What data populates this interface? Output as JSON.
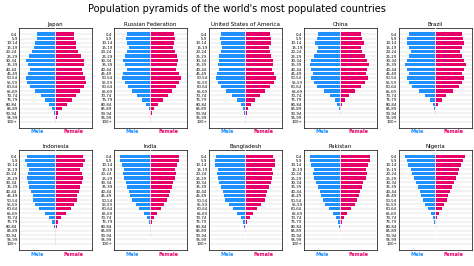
{
  "title": "Population pyramids of the world's most populated countries",
  "chart_data": [
    {
      "type": "bar",
      "orientation": "horizontal",
      "title": "Japan",
      "categories": [
        "100+",
        "95-99",
        "90-94",
        "85-89",
        "80-84",
        "75-79",
        "70-74",
        "65-69",
        "60-64",
        "55-59",
        "50-54",
        "45-49",
        "40-44",
        "35-39",
        "30-34",
        "25-29",
        "20-24",
        "15-19",
        "10-14",
        "5-9",
        "0-4"
      ],
      "series": [
        {
          "name": "Male",
          "color": "#1E90FF",
          "values": [
            0.02,
            0.05,
            0.15,
            0.45,
            0.9,
            1.4,
            2.0,
            2.8,
            3.5,
            3.9,
            4.0,
            3.8,
            3.5,
            3.8,
            4.0,
            3.6,
            3.2,
            3.0,
            2.8,
            2.6,
            2.5
          ]
        },
        {
          "name": "Female",
          "color": "#E8006A",
          "values": [
            0.05,
            0.15,
            0.4,
            0.9,
            1.6,
            2.3,
            2.9,
            3.4,
            4.0,
            4.2,
            4.1,
            3.8,
            3.6,
            3.9,
            3.9,
            3.5,
            3.1,
            2.9,
            2.8,
            2.6,
            2.5
          ]
        }
      ],
      "xlim": [
        -5.04,
        5.04
      ],
      "tick_labels": "y",
      "grid": true
    },
    {
      "type": "bar",
      "orientation": "horizontal",
      "title": "Russian Federation",
      "categories": [
        "100+",
        "95-99",
        "90-94",
        "85-89",
        "80-84",
        "75-79",
        "70-74",
        "65-69",
        "60-64",
        "55-59",
        "50-54",
        "45-49",
        "40-44",
        "35-39",
        "30-34",
        "25-29",
        "20-24",
        "15-19",
        "10-14",
        "5-9",
        "0-4"
      ],
      "series": [
        {
          "name": "Male",
          "color": "#1E90FF",
          "values": [
            0.01,
            0.03,
            0.08,
            0.2,
            0.6,
            1.2,
            2.0,
            2.7,
            3.3,
            3.8,
            4.2,
            4.0,
            3.5,
            3.7,
            4.0,
            3.8,
            3.5,
            3.2,
            3.5,
            3.6,
            3.5
          ]
        },
        {
          "name": "Female",
          "color": "#E8006A",
          "values": [
            0.04,
            0.12,
            0.3,
            0.6,
            1.2,
            1.9,
            2.6,
            3.2,
            3.8,
            4.2,
            4.5,
            4.3,
            3.8,
            3.9,
            4.1,
            3.9,
            3.6,
            3.3,
            3.5,
            3.6,
            3.5
          ]
        }
      ],
      "xlim": [
        -5.4,
        5.4
      ],
      "tick_labels": "y",
      "grid": true
    },
    {
      "type": "bar",
      "orientation": "horizontal",
      "title": "United States of America",
      "categories": [
        "100+",
        "95-99",
        "90-94",
        "85-89",
        "80-84",
        "75-79",
        "70-74",
        "65-69",
        "60-64",
        "55-59",
        "50-54",
        "45-49",
        "40-44",
        "35-39",
        "30-34",
        "25-29",
        "20-24",
        "15-19",
        "10-14",
        "5-9",
        "0-4"
      ],
      "series": [
        {
          "name": "Male",
          "color": "#1E90FF",
          "values": [
            0.03,
            0.07,
            0.15,
            0.35,
            0.7,
            1.3,
            2.1,
            3.0,
            3.8,
            4.3,
            4.6,
            4.4,
            4.1,
            4.3,
            4.2,
            4.1,
            3.9,
            3.7,
            3.9,
            4.0,
            3.9
          ]
        },
        {
          "name": "Female",
          "color": "#E8006A",
          "values": [
            0.06,
            0.12,
            0.25,
            0.45,
            0.9,
            1.5,
            2.3,
            3.1,
            3.9,
            4.5,
            4.8,
            4.5,
            4.2,
            4.4,
            4.3,
            4.1,
            3.9,
            3.8,
            4.0,
            4.0,
            3.9
          ]
        }
      ],
      "xlim": [
        -5.76,
        5.76
      ],
      "tick_labels": "y",
      "grid": true
    },
    {
      "type": "bar",
      "orientation": "horizontal",
      "title": "China",
      "categories": [
        "100+",
        "95-99",
        "90-94",
        "85-89",
        "80-84",
        "75-79",
        "70-74",
        "65-69",
        "60-64",
        "55-59",
        "50-54",
        "45-49",
        "40-44",
        "35-39",
        "30-34",
        "25-29",
        "20-24",
        "15-19",
        "10-14",
        "5-9",
        "0-4"
      ],
      "series": [
        {
          "name": "Male",
          "color": "#1E90FF",
          "values": [
            0.01,
            0.03,
            0.07,
            0.18,
            0.5,
            1.0,
            1.8,
            3.0,
            4.2,
            4.8,
            5.3,
            5.0,
            5.3,
            5.6,
            5.3,
            4.8,
            4.3,
            4.0,
            4.6,
            4.3,
            4.1
          ]
        },
        {
          "name": "Female",
          "color": "#E8006A",
          "values": [
            0.01,
            0.03,
            0.06,
            0.15,
            0.42,
            0.88,
            1.6,
            2.7,
            3.9,
            4.6,
            5.1,
            4.8,
            5.0,
            5.3,
            5.0,
            4.6,
            4.1,
            3.8,
            4.3,
            4.0,
            3.8
          ]
        }
      ],
      "xlim": [
        -6.72,
        6.72
      ],
      "tick_labels": "y",
      "grid": true
    },
    {
      "type": "bar",
      "orientation": "horizontal",
      "title": "Brazil",
      "categories": [
        "100+",
        "95-99",
        "90-94",
        "85-89",
        "80-84",
        "75-79",
        "70-74",
        "65-69",
        "60-64",
        "55-59",
        "50-54",
        "45-49",
        "40-44",
        "35-39",
        "30-34",
        "25-29",
        "20-24",
        "15-19",
        "10-14",
        "5-9",
        "0-4"
      ],
      "series": [
        {
          "name": "Male",
          "color": "#1E90FF",
          "values": [
            0.01,
            0.03,
            0.07,
            0.16,
            0.4,
            0.85,
            1.6,
            2.5,
            3.5,
            4.0,
            4.3,
            4.1,
            4.3,
            4.6,
            4.3,
            4.1,
            3.8,
            4.0,
            4.3,
            4.3,
            4.1
          ]
        },
        {
          "name": "Female",
          "color": "#E8006A",
          "values": [
            0.02,
            0.05,
            0.1,
            0.2,
            0.5,
            1.0,
            1.75,
            2.7,
            3.7,
            4.1,
            4.4,
            4.2,
            4.4,
            4.7,
            4.4,
            4.2,
            3.9,
            4.1,
            4.4,
            4.3,
            4.1
          ]
        }
      ],
      "xlim": [
        -5.64,
        5.64
      ],
      "tick_labels": "y",
      "grid": true
    },
    {
      "type": "bar",
      "orientation": "horizontal",
      "title": "Indonesia",
      "categories": [
        "100+",
        "95-99",
        "90-94",
        "85-89",
        "80-84",
        "75-79",
        "70-74",
        "65-69",
        "60-64",
        "55-59",
        "50-54",
        "45-49",
        "40-44",
        "35-39",
        "30-34",
        "25-29",
        "20-24",
        "15-19",
        "10-14",
        "5-9",
        "0-4"
      ],
      "series": [
        {
          "name": "Male",
          "color": "#1E90FF",
          "values": [
            0.01,
            0.02,
            0.04,
            0.1,
            0.25,
            0.55,
            1.1,
            1.9,
            3.0,
            3.7,
            4.2,
            4.2,
            4.5,
            4.8,
            5.0,
            5.3,
            5.1,
            4.8,
            5.3,
            5.6,
            5.3
          ]
        },
        {
          "name": "Female",
          "color": "#E8006A",
          "values": [
            0.01,
            0.02,
            0.04,
            0.1,
            0.25,
            0.55,
            1.1,
            1.85,
            2.9,
            3.5,
            4.0,
            4.0,
            4.3,
            4.6,
            4.8,
            5.1,
            4.9,
            4.6,
            5.1,
            5.4,
            5.1
          ]
        }
      ],
      "xlim": [
        -6.72,
        6.72
      ],
      "tick_labels": "y",
      "grid": true
    },
    {
      "type": "bar",
      "orientation": "horizontal",
      "title": "India",
      "categories": [
        "100+",
        "95-99",
        "90-94",
        "85-89",
        "80-84",
        "75-79",
        "70-74",
        "65-69",
        "60-64",
        "55-59",
        "50-54",
        "45-49",
        "40-44",
        "35-39",
        "30-34",
        "25-29",
        "20-24",
        "15-19",
        "10-14",
        "5-9",
        "0-4"
      ],
      "series": [
        {
          "name": "Male",
          "color": "#1E90FF",
          "values": [
            0.01,
            0.02,
            0.04,
            0.09,
            0.2,
            0.45,
            0.95,
            1.7,
            2.8,
            3.8,
            4.7,
            5.2,
            5.5,
            5.9,
            6.2,
            6.8,
            7.0,
            6.8,
            7.3,
            7.8,
            7.8
          ]
        },
        {
          "name": "Female",
          "color": "#E8006A",
          "values": [
            0.01,
            0.02,
            0.04,
            0.09,
            0.2,
            0.44,
            0.9,
            1.6,
            2.6,
            3.5,
            4.3,
            4.8,
            5.1,
            5.5,
            5.8,
            6.3,
            6.5,
            6.3,
            6.8,
            7.3,
            7.3
          ]
        }
      ],
      "xlim": [
        -9.36,
        9.36
      ],
      "tick_labels": "y",
      "grid": true
    },
    {
      "type": "bar",
      "orientation": "horizontal",
      "title": "Bangladesh",
      "categories": [
        "100+",
        "95-99",
        "90-94",
        "85-89",
        "80-84",
        "75-79",
        "70-74",
        "65-69",
        "60-64",
        "55-59",
        "50-54",
        "45-49",
        "40-44",
        "35-39",
        "30-34",
        "25-29",
        "20-24",
        "15-19",
        "10-14",
        "5-9",
        "0-4"
      ],
      "series": [
        {
          "name": "Male",
          "color": "#1E90FF",
          "values": [
            0.01,
            0.02,
            0.03,
            0.08,
            0.18,
            0.38,
            0.8,
            1.4,
            2.2,
            2.9,
            3.5,
            3.7,
            3.9,
            4.2,
            4.5,
            4.8,
            5.0,
            4.8,
            5.3,
            5.3,
            5.1
          ]
        },
        {
          "name": "Female",
          "color": "#E8006A",
          "values": [
            0.01,
            0.02,
            0.03,
            0.08,
            0.18,
            0.37,
            0.77,
            1.35,
            2.1,
            2.8,
            3.4,
            3.6,
            3.8,
            4.1,
            4.4,
            4.7,
            4.9,
            4.7,
            5.1,
            5.1,
            4.9
          ]
        }
      ],
      "xlim": [
        -6.36,
        6.36
      ],
      "tick_labels": "y",
      "grid": true
    },
    {
      "type": "bar",
      "orientation": "horizontal",
      "title": "Pakistan",
      "categories": [
        "100+",
        "95-99",
        "90-94",
        "85-89",
        "80-84",
        "75-79",
        "70-74",
        "65-69",
        "60-64",
        "55-59",
        "50-54",
        "45-49",
        "40-44",
        "35-39",
        "30-34",
        "25-29",
        "20-24",
        "15-19",
        "10-14",
        "5-9",
        "0-4"
      ],
      "series": [
        {
          "name": "Male",
          "color": "#1E90FF",
          "values": [
            0.01,
            0.02,
            0.03,
            0.07,
            0.17,
            0.35,
            0.72,
            1.25,
            2.0,
            2.7,
            3.2,
            3.5,
            3.7,
            4.0,
            4.3,
            4.7,
            4.9,
            4.7,
            5.2,
            5.5,
            5.5
          ]
        },
        {
          "name": "Female",
          "color": "#E8006A",
          "values": [
            0.01,
            0.02,
            0.03,
            0.07,
            0.17,
            0.35,
            0.7,
            1.2,
            1.9,
            2.6,
            3.1,
            3.4,
            3.6,
            3.9,
            4.2,
            4.6,
            4.8,
            4.6,
            5.1,
            5.4,
            5.4
          ]
        }
      ],
      "xlim": [
        -6.6,
        6.6
      ],
      "tick_labels": "y",
      "grid": true
    },
    {
      "type": "bar",
      "orientation": "horizontal",
      "title": "Nigeria",
      "categories": [
        "100+",
        "95-99",
        "90-94",
        "85-89",
        "80-84",
        "75-79",
        "70-74",
        "65-69",
        "60-64",
        "55-59",
        "50-54",
        "45-49",
        "40-44",
        "35-39",
        "30-34",
        "25-29",
        "20-24",
        "15-19",
        "10-14",
        "5-9",
        "0-4"
      ],
      "series": [
        {
          "name": "Male",
          "color": "#1E90FF",
          "values": [
            0.01,
            0.02,
            0.03,
            0.07,
            0.16,
            0.32,
            0.65,
            1.15,
            1.9,
            2.6,
            3.2,
            3.7,
            4.2,
            4.7,
            5.2,
            5.7,
            6.2,
            6.5,
            7.2,
            7.7,
            8.2
          ]
        },
        {
          "name": "Female",
          "color": "#E8006A",
          "values": [
            0.01,
            0.02,
            0.03,
            0.07,
            0.16,
            0.32,
            0.63,
            1.1,
            1.8,
            2.5,
            3.1,
            3.6,
            4.1,
            4.6,
            5.1,
            5.6,
            6.1,
            6.4,
            7.1,
            7.6,
            8.1
          ]
        }
      ],
      "xlim": [
        -9.84,
        9.84
      ],
      "tick_labels": "y",
      "grid": true
    }
  ]
}
